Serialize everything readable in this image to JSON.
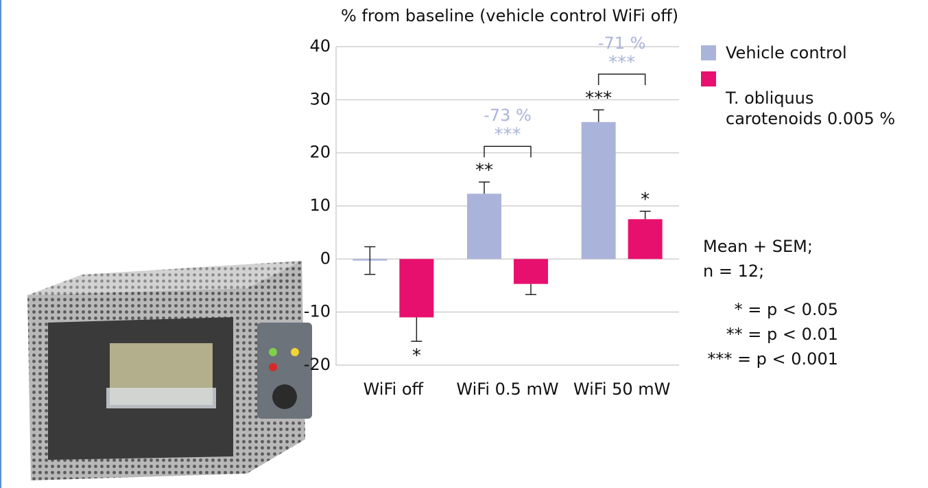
{
  "chart_data": {
    "type": "bar",
    "title": "% from baseline (vehicle control WiFi off)",
    "categories": [
      "WiFi off",
      "WiFi 0.5 mW",
      "WiFi 50 mW"
    ],
    "series": [
      {
        "name": "Vehicle control",
        "color": "#aab4db",
        "values": [
          -0.3,
          12.3,
          25.8
        ],
        "errors": [
          2.6,
          2.2,
          2.3
        ],
        "value_labels": [
          null,
          "**",
          "***"
        ]
      },
      {
        "name": "T. obliquus carotenoids 0.005 %",
        "color": "#e8106e",
        "values": [
          -11,
          -4.7,
          7.5
        ],
        "errors": [
          4.5,
          2,
          1.5
        ],
        "value_labels": [
          "*",
          null,
          "*"
        ]
      }
    ],
    "comparisons": [
      {
        "category": "WiFi 0.5 mW",
        "percent": "-73 %",
        "stars": "***"
      },
      {
        "category": "WiFi 50 mW",
        "percent": "-71 %",
        "stars": "***"
      }
    ],
    "ylim": [
      -20,
      40
    ],
    "yticks": [
      -20,
      -10,
      0,
      10,
      20,
      30,
      40
    ],
    "grid": true,
    "notes": [
      "Mean + SEM;",
      "n = 12;"
    ],
    "significance_key": [
      "* = p < 0.05",
      "** = p < 0.01",
      "*** = p < 0.001"
    ]
  }
}
